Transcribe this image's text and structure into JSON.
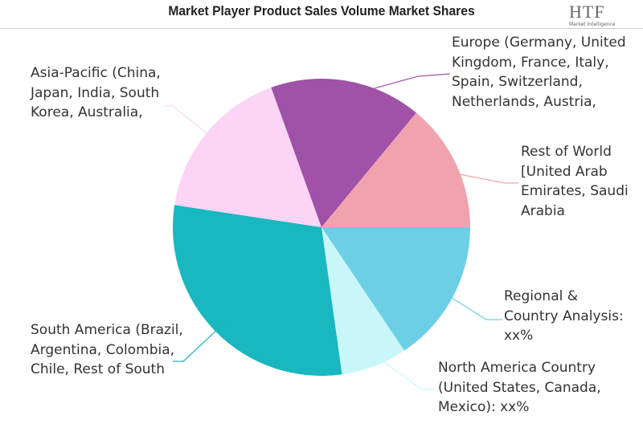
{
  "chart_data": {
    "type": "pie",
    "title": "Market Player Product Sales Volume Market Shares",
    "logo": "HTF",
    "logo_tagline": "Market Intelligence",
    "categories": [
      "Regional & Country Analysis: xx%",
      "North America Country (United States, Canada, Mexico): xx%",
      "South America (Brazil, Argentina, Colombia, Chile, Rest of South",
      "Asia-Pacific (China, Japan, India, South Korea, Australia,",
      "Europe (Germany, United Kingdom, France, Italy, Spain, Switzerland, Netherlands, Austria,",
      "Rest of World [United Arab Emirates, Saudi Arabia"
    ],
    "values": [
      15.6,
      7.2,
      29.6,
      17.1,
      16.5,
      14.0
    ],
    "colors": [
      "#6dcfe6",
      "#c8f7f9",
      "#19b7c0",
      "#fcd5f6",
      "#9f52a8",
      "#f0a3ae"
    ]
  }
}
